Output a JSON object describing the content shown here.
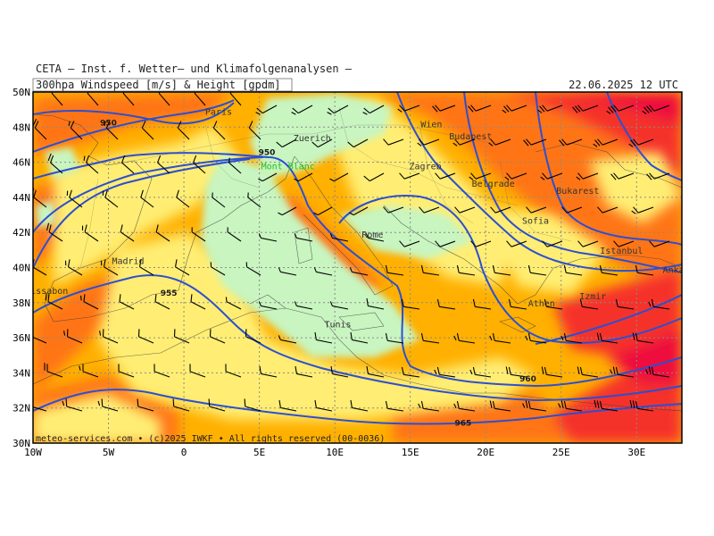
{
  "header": {
    "institute": "CETA — Inst. f. Wetter— und Klimafolgenanalysen —",
    "product": "300hpa Windspeed [m/s] & Height [gpdm]",
    "valid": "22.06.2025 12 UTC"
  },
  "footer": "meteo-services.com • (c)2025 IWKF • All rights reserved (00-0036)",
  "map": {
    "lon_range": [
      -10,
      33
    ],
    "lat_range": [
      30,
      50
    ],
    "lon_ticks": [
      "10W",
      "5W",
      "0",
      "5E",
      "10E",
      "15E",
      "20E",
      "25E",
      "30E"
    ],
    "lat_ticks": [
      "30N",
      "32N",
      "34N",
      "36N",
      "38N",
      "40N",
      "42N",
      "44N",
      "46N",
      "48N",
      "50N"
    ],
    "grid": true,
    "contour_color": "#2d4fd0",
    "colors": {
      "calm": "#c8f5c0",
      "light": "#ffee73",
      "moderate": "#ffb000",
      "strong": "#ff7518",
      "very_strong": "#f5302a",
      "extreme": "#ee0a3c"
    }
  },
  "contour_labels": [
    {
      "text": "950",
      "lon": -5.0,
      "lat": 48.1
    },
    {
      "text": "950",
      "lon": 5.5,
      "lat": 46.4
    },
    {
      "text": "955",
      "lon": -1.0,
      "lat": 38.4
    },
    {
      "text": "960",
      "lon": 22.8,
      "lat": 33.5
    },
    {
      "text": "965",
      "lon": 18.5,
      "lat": 31.0
    }
  ],
  "cities": [
    {
      "name": "Paris",
      "lon": 2.3,
      "lat": 48.9,
      "color": "#333333"
    },
    {
      "name": "Zuerich",
      "lon": 8.5,
      "lat": 47.4,
      "color": "#333333"
    },
    {
      "name": "Mont Blanc",
      "lon": 6.9,
      "lat": 45.8,
      "color": "#22c022"
    },
    {
      "name": "Wien",
      "lon": 16.4,
      "lat": 48.2,
      "color": "#333333"
    },
    {
      "name": "Budapest",
      "lon": 19.0,
      "lat": 47.5,
      "color": "#333333"
    },
    {
      "name": "Zagreb",
      "lon": 16.0,
      "lat": 45.8,
      "color": "#333333"
    },
    {
      "name": "Belgrade",
      "lon": 20.5,
      "lat": 44.8,
      "color": "#333333"
    },
    {
      "name": "Bukarest",
      "lon": 26.1,
      "lat": 44.4,
      "color": "#333333"
    },
    {
      "name": "Sofia",
      "lon": 23.3,
      "lat": 42.7,
      "color": "#333333"
    },
    {
      "name": "Rome",
      "lon": 12.5,
      "lat": 41.9,
      "color": "#333333"
    },
    {
      "name": "Istanbul",
      "lon": 29.0,
      "lat": 41.0,
      "color": "#333333"
    },
    {
      "name": "Ankara",
      "lon": 32.8,
      "lat": 39.9,
      "color": "#333333"
    },
    {
      "name": "Madrid",
      "lon": -3.7,
      "lat": 40.4,
      "color": "#333333"
    },
    {
      "name": "Lissabon",
      "lon": -9.1,
      "lat": 38.7,
      "color": "#333333"
    },
    {
      "name": "Athen",
      "lon": 23.7,
      "lat": 38.0,
      "color": "#333333"
    },
    {
      "name": "Izmir",
      "lon": 27.1,
      "lat": 38.4,
      "color": "#333333"
    },
    {
      "name": "Tunis",
      "lon": 10.2,
      "lat": 36.8,
      "color": "#333333"
    }
  ]
}
